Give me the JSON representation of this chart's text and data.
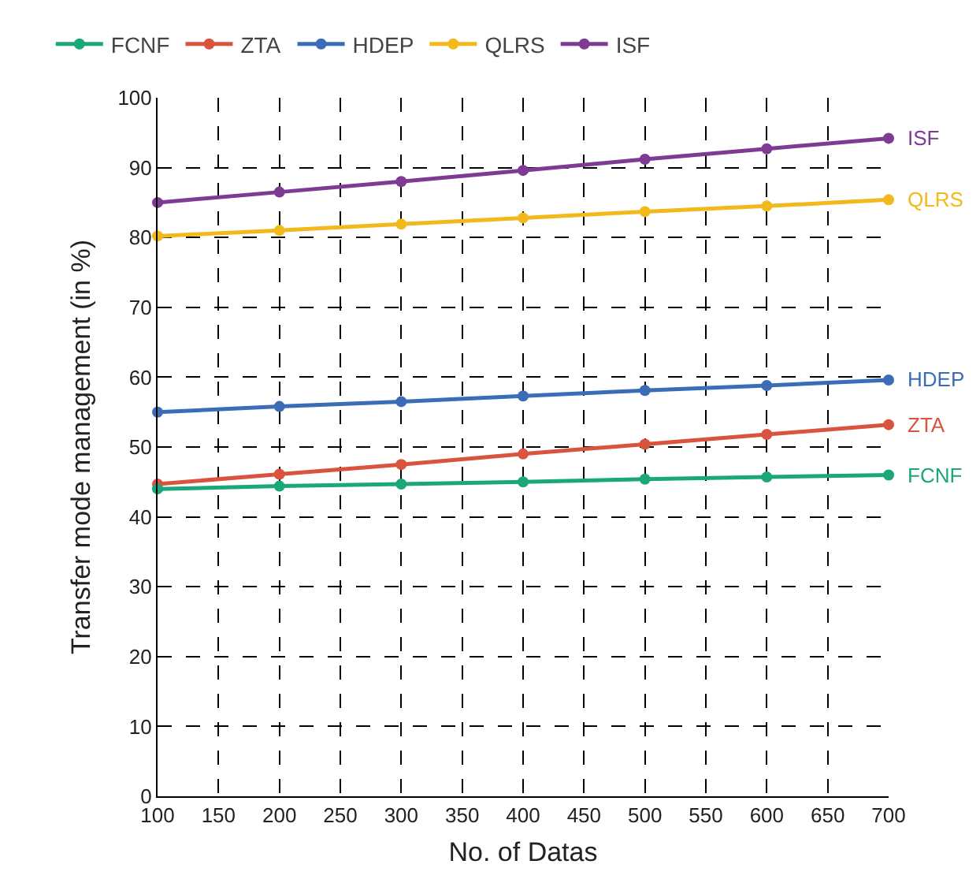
{
  "chart_data": {
    "type": "line",
    "xlabel": "No. of Datas",
    "ylabel": "Transfer mode management (in %)",
    "x": [
      100,
      200,
      300,
      400,
      500,
      600,
      700
    ],
    "series": [
      {
        "name": "FCNF",
        "color": "#1aa77a",
        "values": [
          44,
          44.4,
          44.7,
          45,
          45.4,
          45.7,
          46
        ]
      },
      {
        "name": "ZTA",
        "color": "#d9533d",
        "values": [
          44.7,
          46.1,
          47.5,
          49,
          50.4,
          51.8,
          53.2
        ]
      },
      {
        "name": "HDEP",
        "color": "#3a6db5",
        "values": [
          55,
          55.8,
          56.5,
          57.3,
          58.1,
          58.8,
          59.6
        ]
      },
      {
        "name": "QLRS",
        "color": "#f1b91b",
        "values": [
          80.2,
          81,
          81.9,
          82.8,
          83.7,
          84.5,
          85.4
        ]
      },
      {
        "name": "ISF",
        "color": "#7e3b94",
        "values": [
          85,
          86.5,
          88,
          89.6,
          91.2,
          92.7,
          94.2
        ]
      }
    ],
    "xlim": [
      100,
      700
    ],
    "xticks": [
      100,
      150,
      200,
      250,
      300,
      350,
      400,
      450,
      500,
      550,
      600,
      650,
      700
    ],
    "ylim": [
      0,
      100
    ],
    "yticks": [
      0,
      10,
      20,
      30,
      40,
      50,
      60,
      70,
      80,
      90,
      100
    ],
    "grid": true,
    "legend": "top left",
    "marker": "circle",
    "line_style": "solid"
  }
}
